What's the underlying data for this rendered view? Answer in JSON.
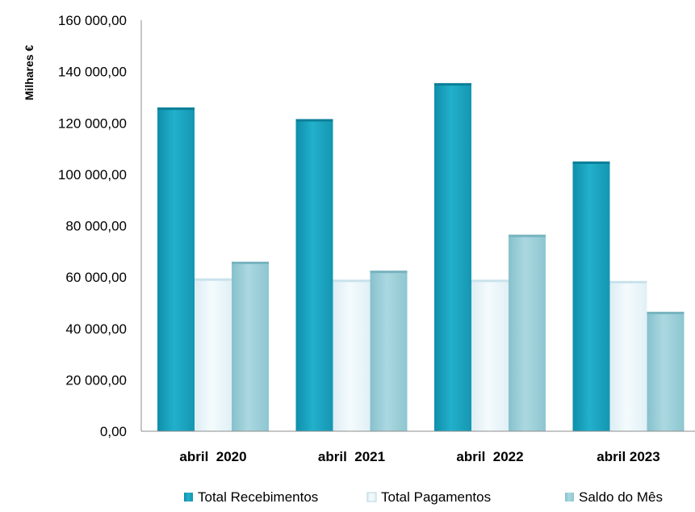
{
  "chart_data": {
    "type": "bar",
    "title": "",
    "xlabel": "",
    "ylabel": "Milhares €",
    "ylim": [
      0,
      160000
    ],
    "yticks": [
      0,
      20000,
      40000,
      60000,
      80000,
      100000,
      120000,
      140000,
      160000
    ],
    "ytick_labels": [
      "0,00",
      "20 000,00",
      "40 000,00",
      "60 000,00",
      "80 000,00",
      "100 000,00",
      "120 000,00",
      "140 000,00",
      "160 000,00"
    ],
    "categories": [
      "abril  2020",
      "abril  2021",
      "abril  2022",
      "abril 2023"
    ],
    "series": [
      {
        "name": "Total Recebimentos",
        "values": [
          126000,
          121500,
          135500,
          105000
        ]
      },
      {
        "name": "Total Pagamentos",
        "values": [
          59500,
          59000,
          59000,
          58500
        ]
      },
      {
        "name": "Saldo do Mês",
        "values": [
          66000,
          62500,
          76500,
          46500
        ]
      }
    ],
    "colors": [
      "#1aa5c2",
      "#e9f5fa",
      "#9ccfd8"
    ],
    "grid": false,
    "legend_position": "bottom"
  }
}
